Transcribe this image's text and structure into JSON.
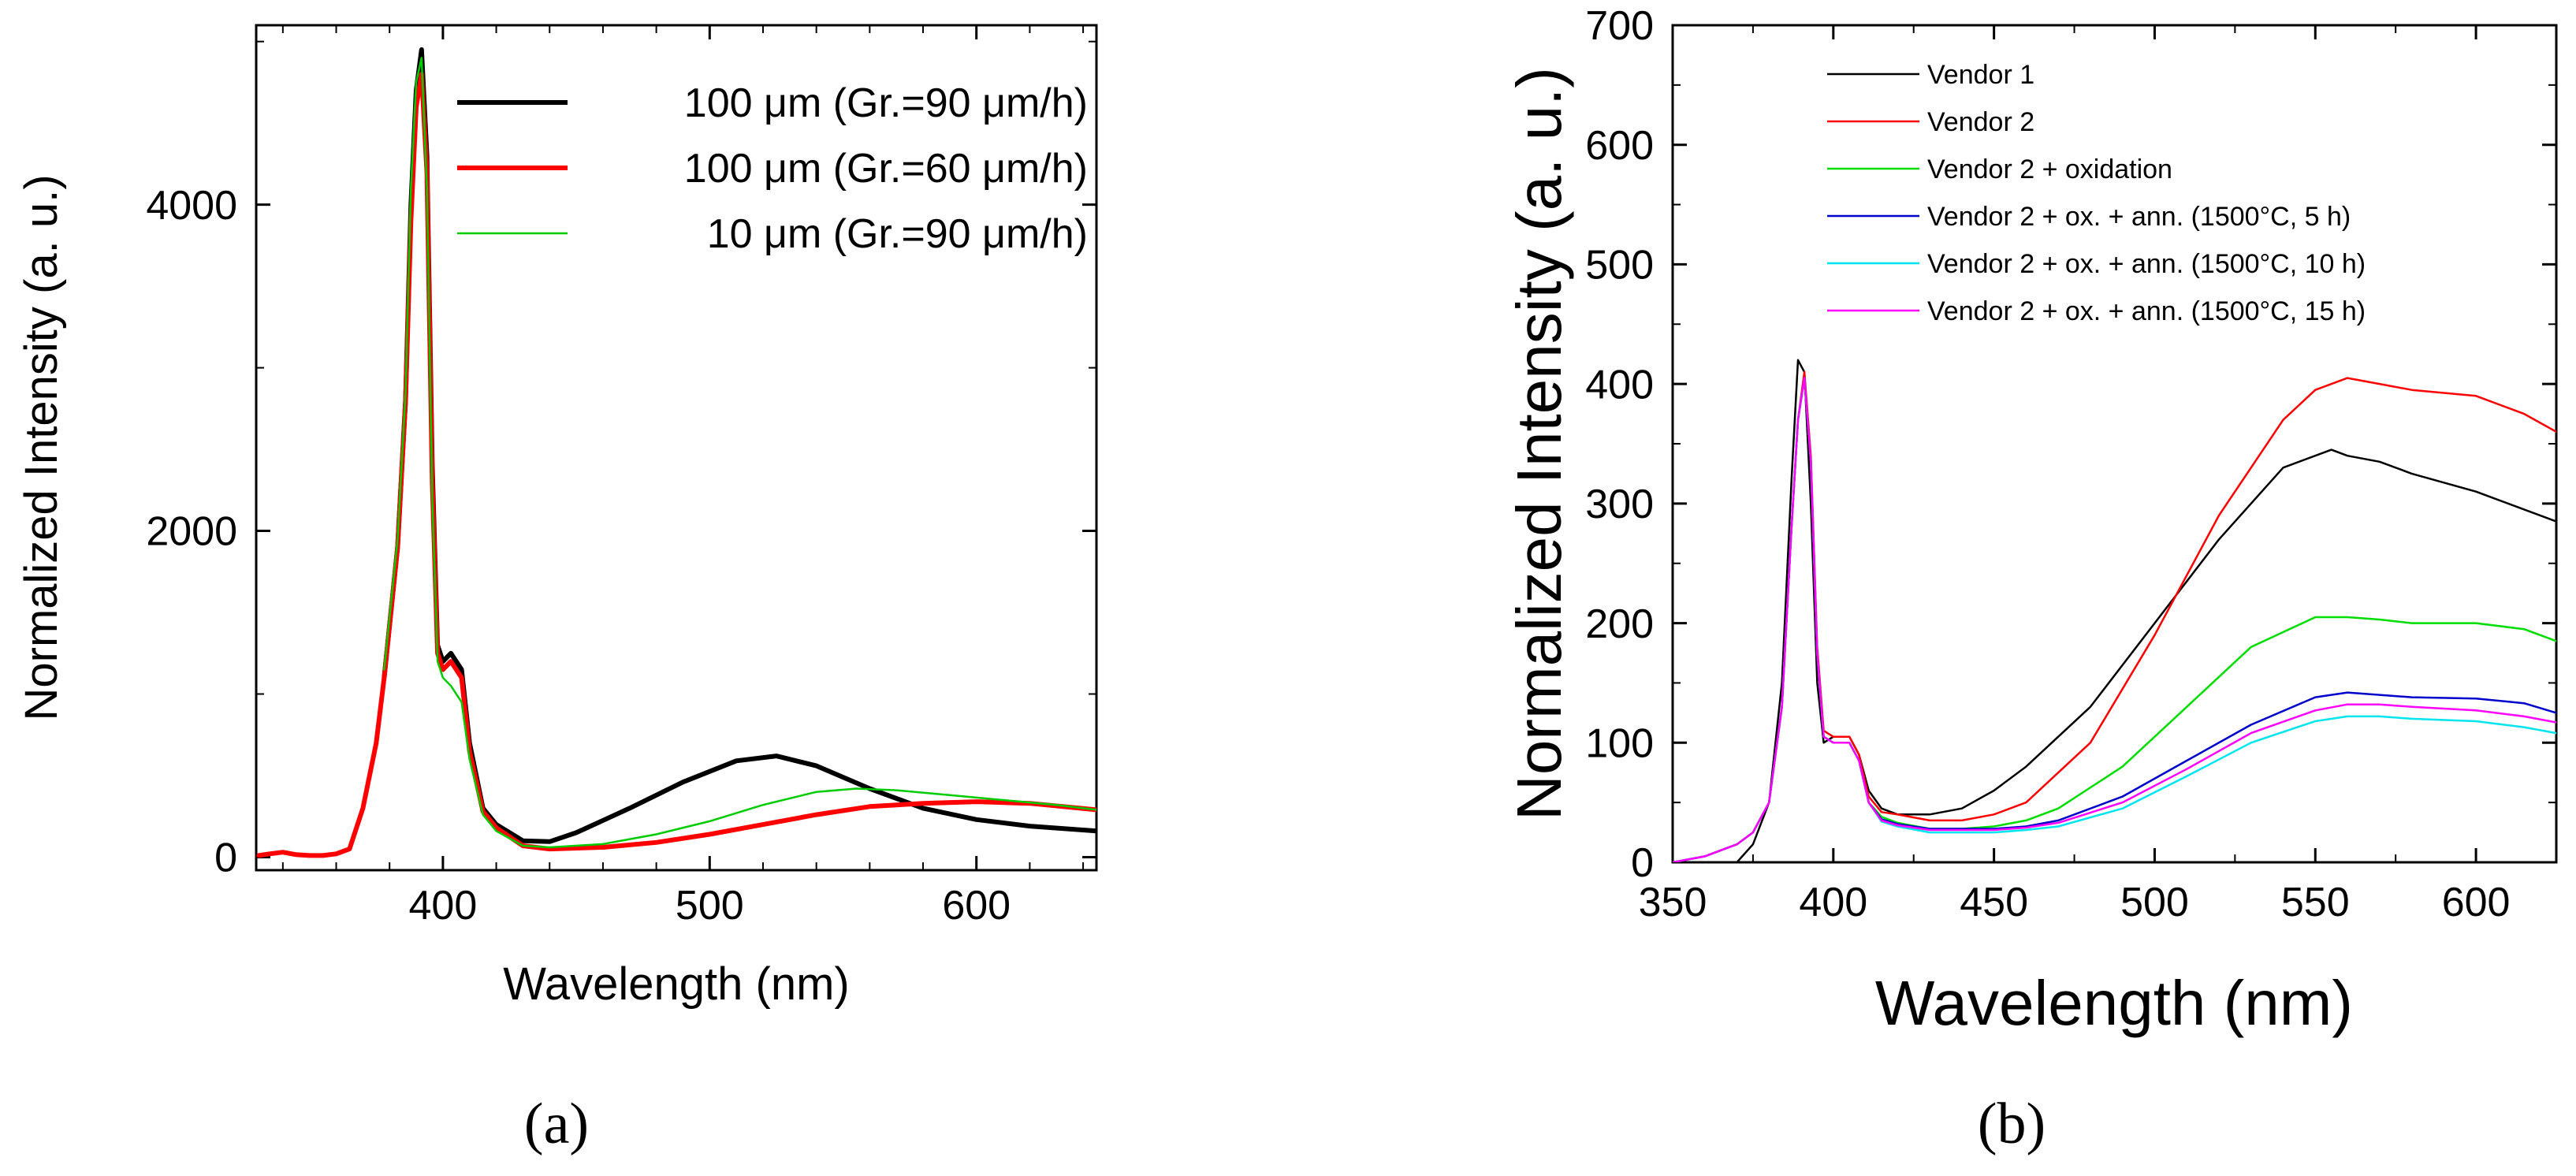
{
  "panel_labels": {
    "a": "(a)",
    "b": "(b)"
  },
  "chart_data": [
    {
      "type": "line",
      "panel": "a",
      "xlabel": "Wavelength (nm)",
      "ylabel": "Normalized Intensity (a. u.)",
      "xlim": [
        330,
        645
      ],
      "ylim": [
        -80,
        5100
      ],
      "xticks": [
        400,
        500,
        600
      ],
      "yticks": [
        0,
        2000,
        4000
      ],
      "minor_x_step": 20,
      "minor_y_step": 1000,
      "grid": false,
      "legend": "top-right",
      "series": [
        {
          "name": "100 μm (Gr.=90 μm/h)",
          "color": "#000000",
          "width": "thick",
          "x": [
            378,
            383,
            386,
            388,
            390,
            392,
            394,
            396,
            398,
            400,
            403,
            407,
            410,
            415,
            420,
            430,
            440,
            450,
            470,
            490,
            510,
            525,
            540,
            560,
            580,
            600,
            620,
            645
          ],
          "y": [
            1100,
            1900,
            2800,
            4000,
            4700,
            4950,
            4300,
            2400,
            1300,
            1200,
            1250,
            1150,
            700,
            300,
            200,
            100,
            95,
            150,
            300,
            460,
            590,
            620,
            560,
            420,
            300,
            230,
            190,
            160
          ]
        },
        {
          "name": "100 μm (Gr.=60 μm/h)",
          "color": "#ff0000",
          "width": "thick",
          "x": [
            331,
            335,
            340,
            345,
            350,
            355,
            360,
            365,
            370,
            375,
            378,
            383,
            386,
            388,
            390,
            392,
            394,
            396,
            398,
            400,
            403,
            407,
            410,
            415,
            420,
            430,
            440,
            460,
            480,
            500,
            520,
            540,
            560,
            580,
            600,
            620,
            645
          ],
          "y": [
            10,
            20,
            30,
            15,
            10,
            10,
            20,
            50,
            300,
            700,
            1100,
            1900,
            2800,
            3900,
            4600,
            4800,
            4200,
            2300,
            1250,
            1150,
            1200,
            1100,
            650,
            280,
            180,
            70,
            50,
            60,
            90,
            140,
            200,
            260,
            310,
            330,
            340,
            330,
            290
          ]
        },
        {
          "name": "10 μm (Gr.=90 μm/h)",
          "color": "#00cc00",
          "width": "thin",
          "x": [
            378,
            383,
            386,
            388,
            390,
            392,
            394,
            396,
            398,
            400,
            403,
            407,
            410,
            415,
            420,
            430,
            440,
            460,
            480,
            500,
            520,
            540,
            555,
            570,
            590,
            610,
            630,
            645
          ],
          "y": [
            1150,
            1950,
            2850,
            4100,
            4750,
            4900,
            4100,
            2200,
            1200,
            1100,
            1050,
            950,
            600,
            260,
            160,
            70,
            60,
            80,
            140,
            220,
            320,
            400,
            420,
            410,
            380,
            350,
            320,
            290
          ]
        }
      ]
    },
    {
      "type": "line",
      "panel": "b",
      "xlabel": "Wavelength (nm)",
      "ylabel": "Normalized Intensity (a. u.)",
      "xlim": [
        350,
        625
      ],
      "ylim": [
        0,
        700
      ],
      "xticks": [
        350,
        400,
        450,
        500,
        550,
        600
      ],
      "yticks": [
        0,
        100,
        200,
        300,
        400,
        500,
        600,
        700
      ],
      "minor_x_step": 25,
      "minor_y_step": 50,
      "grid": false,
      "legend": "top-left",
      "series": [
        {
          "name": "Vendor 1",
          "color": "#000000",
          "x": [
            370,
            375,
            380,
            384,
            387,
            389,
            391,
            393,
            395,
            397,
            400,
            405,
            408,
            411,
            415,
            420,
            430,
            440,
            450,
            460,
            480,
            500,
            520,
            540,
            555,
            560,
            570,
            580,
            600,
            625
          ],
          "y": [
            0,
            15,
            50,
            150,
            320,
            420,
            410,
            300,
            150,
            100,
            105,
            105,
            90,
            60,
            45,
            40,
            40,
            45,
            60,
            80,
            130,
            200,
            270,
            330,
            345,
            340,
            335,
            325,
            310,
            285
          ]
        },
        {
          "name": "Vendor 2",
          "color": "#ff0000",
          "x": [
            350,
            360,
            365,
            370,
            375,
            380,
            384,
            387,
            389,
            391,
            393,
            395,
            397,
            400,
            405,
            408,
            411,
            415,
            420,
            430,
            440,
            450,
            460,
            480,
            500,
            520,
            540,
            550,
            560,
            570,
            580,
            600,
            615,
            625
          ],
          "y": [
            0,
            5,
            10,
            15,
            25,
            50,
            130,
            280,
            370,
            410,
            340,
            180,
            110,
            105,
            105,
            90,
            55,
            42,
            40,
            35,
            35,
            40,
            50,
            100,
            190,
            290,
            370,
            395,
            405,
            400,
            395,
            390,
            375,
            360
          ]
        },
        {
          "name": "Vendor 2 + oxidation",
          "color": "#00dd00",
          "x": [
            350,
            360,
            365,
            370,
            375,
            380,
            384,
            387,
            389,
            391,
            393,
            395,
            397,
            400,
            405,
            408,
            411,
            415,
            420,
            430,
            440,
            450,
            460,
            470,
            490,
            510,
            530,
            550,
            560,
            570,
            580,
            600,
            615,
            625
          ],
          "y": [
            0,
            5,
            10,
            15,
            25,
            50,
            130,
            280,
            370,
            405,
            335,
            175,
            105,
            100,
            100,
            85,
            50,
            38,
            33,
            28,
            28,
            30,
            35,
            45,
            80,
            130,
            180,
            205,
            205,
            203,
            200,
            200,
            195,
            185
          ]
        },
        {
          "name": "Vendor 2 + ox. + ann. (1500°C, 5 h)",
          "color": "#0000cc",
          "x": [
            350,
            360,
            365,
            370,
            375,
            380,
            384,
            387,
            389,
            391,
            393,
            395,
            397,
            400,
            405,
            408,
            411,
            415,
            420,
            430,
            440,
            450,
            460,
            470,
            490,
            510,
            530,
            550,
            560,
            570,
            580,
            600,
            615,
            625
          ],
          "y": [
            0,
            5,
            10,
            15,
            25,
            50,
            130,
            280,
            370,
            405,
            335,
            175,
            105,
            100,
            100,
            85,
            50,
            36,
            32,
            28,
            28,
            28,
            30,
            35,
            55,
            85,
            115,
            138,
            142,
            140,
            138,
            137,
            133,
            125
          ]
        },
        {
          "name": "Vendor 2 + ox. + ann. (1500°C, 10 h)",
          "color": "#00e5ee",
          "x": [
            350,
            360,
            365,
            370,
            375,
            380,
            384,
            387,
            389,
            391,
            393,
            395,
            397,
            400,
            405,
            408,
            411,
            415,
            420,
            430,
            440,
            450,
            460,
            470,
            490,
            510,
            530,
            550,
            560,
            570,
            580,
            600,
            615,
            625
          ],
          "y": [
            0,
            5,
            10,
            15,
            25,
            50,
            130,
            280,
            370,
            405,
            335,
            175,
            105,
            100,
            100,
            85,
            50,
            34,
            30,
            25,
            25,
            25,
            27,
            30,
            45,
            72,
            100,
            118,
            122,
            122,
            120,
            118,
            113,
            108
          ]
        },
        {
          "name": "Vendor 2 + ox. + ann. (1500°C, 15 h)",
          "color": "#ff00ff",
          "x": [
            350,
            360,
            365,
            370,
            375,
            380,
            384,
            387,
            389,
            391,
            393,
            395,
            397,
            400,
            405,
            408,
            411,
            415,
            420,
            430,
            440,
            450,
            460,
            470,
            490,
            510,
            530,
            550,
            560,
            570,
            580,
            600,
            615,
            625
          ],
          "y": [
            0,
            5,
            10,
            15,
            25,
            50,
            130,
            280,
            370,
            405,
            335,
            175,
            105,
            100,
            100,
            85,
            50,
            35,
            31,
            27,
            27,
            27,
            29,
            33,
            50,
            78,
            108,
            127,
            132,
            132,
            130,
            127,
            122,
            117
          ]
        }
      ]
    }
  ]
}
